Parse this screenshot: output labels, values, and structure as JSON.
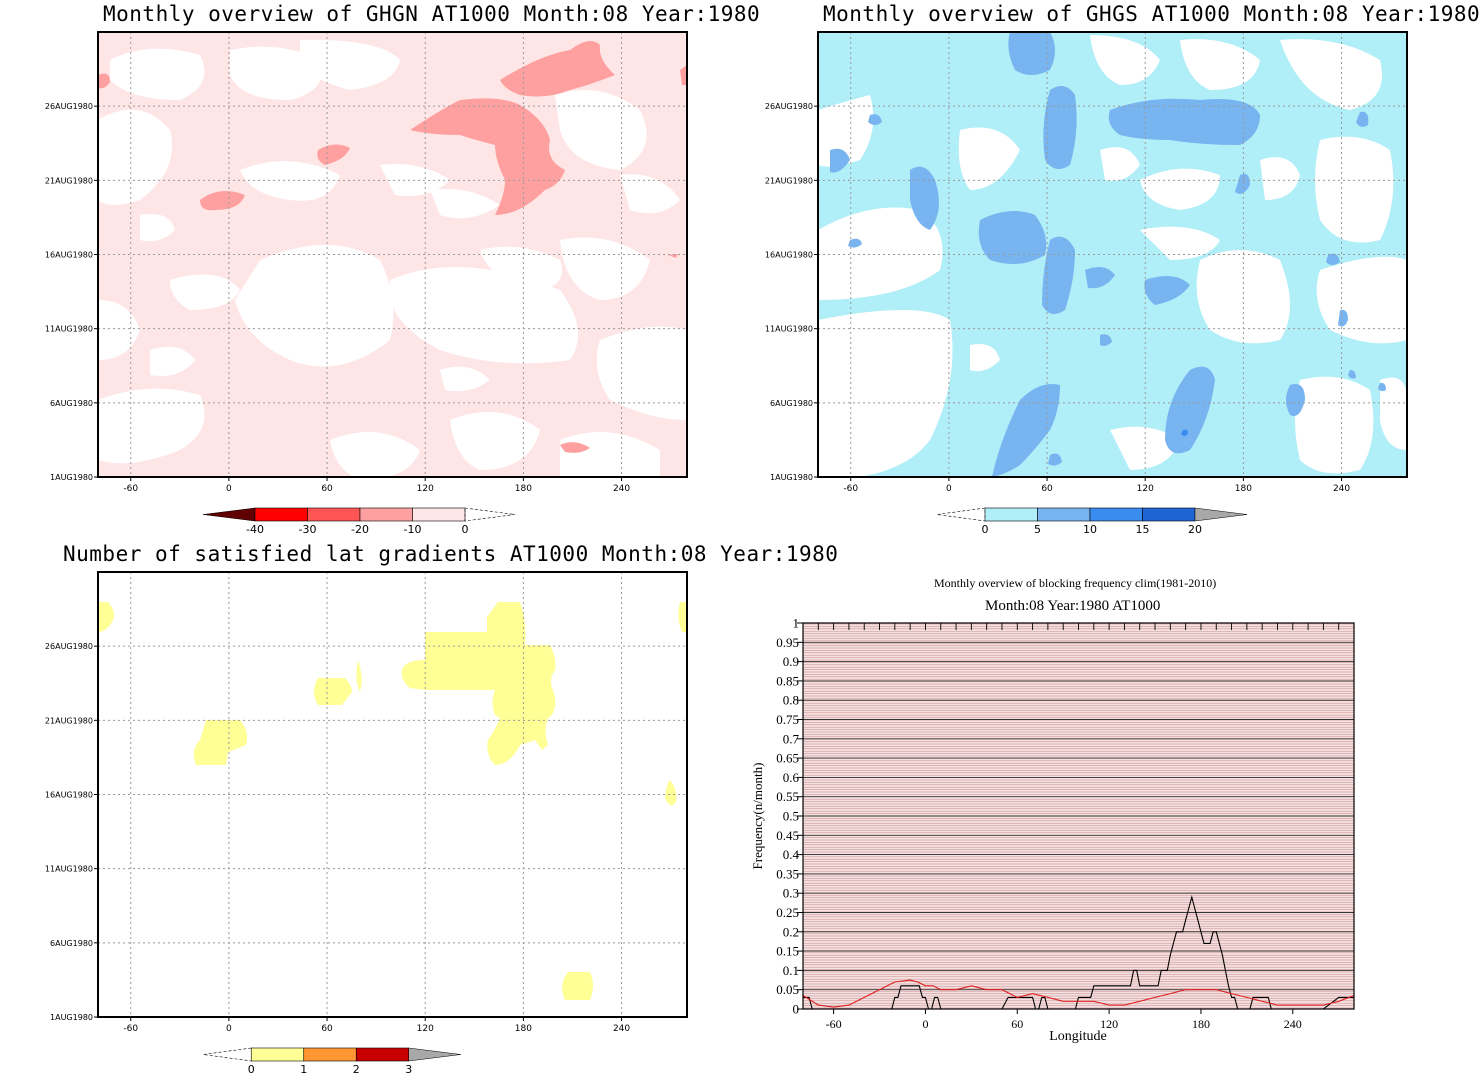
{
  "panels": [
    {
      "id": "ghgn",
      "title": "Monthly overview of GHGN AT1000 Month:08 Year:1980",
      "x_ticks": [
        "-60",
        "0",
        "60",
        "120",
        "180",
        "240"
      ],
      "x_tick_values": [
        -60,
        0,
        60,
        120,
        180,
        240
      ],
      "y_ticks": [
        "1AUG1980",
        "6AUG1980",
        "11AUG1980",
        "16AUG1980",
        "21AUG1980",
        "26AUG1980"
      ],
      "y_tick_values": [
        1,
        6,
        11,
        16,
        21,
        26
      ],
      "xlim": [
        -80,
        280
      ],
      "ylim": [
        1,
        31
      ],
      "colorbar": {
        "labels": [
          "-40",
          "-30",
          "-20",
          "-10",
          "0"
        ],
        "colors": [
          "#ff0000",
          "#ff5555",
          "#ffa0a0",
          "#ffe6e6"
        ],
        "low_end_color": "#600000",
        "high_end_open": true
      }
    },
    {
      "id": "ghgs",
      "title": "Monthly overview of GHGS AT1000 Month:08 Year:1980",
      "x_ticks": [
        "-60",
        "0",
        "60",
        "120",
        "180",
        "240"
      ],
      "x_tick_values": [
        -60,
        0,
        60,
        120,
        180,
        240
      ],
      "y_ticks": [
        "1AUG1980",
        "6AUG1980",
        "11AUG1980",
        "16AUG1980",
        "21AUG1980",
        "26AUG1980"
      ],
      "y_tick_values": [
        1,
        6,
        11,
        16,
        21,
        26
      ],
      "xlim": [
        -80,
        280
      ],
      "ylim": [
        1,
        31
      ],
      "colorbar": {
        "labels": [
          "0",
          "5",
          "10",
          "15",
          "20"
        ],
        "colors": [
          "#b0eef8",
          "#78b4f0",
          "#3a8cf0",
          "#1e64d2"
        ],
        "high_end_color": "#a8a8a8",
        "low_end_open": true
      }
    },
    {
      "id": "gradients",
      "title": "Number of satisfied lat gradients AT1000 Month:08 Year:1980",
      "x_ticks": [
        "-60",
        "0",
        "60",
        "120",
        "180",
        "240"
      ],
      "x_tick_values": [
        -60,
        0,
        60,
        120,
        180,
        240
      ],
      "y_ticks": [
        "1AUG1980",
        "6AUG1980",
        "11AUG1980",
        "16AUG1980",
        "21AUG1980",
        "26AUG1980"
      ],
      "y_tick_values": [
        1,
        6,
        11,
        16,
        21,
        26
      ],
      "xlim": [
        -80,
        280
      ],
      "ylim": [
        1,
        31
      ],
      "colorbar": {
        "labels": [
          "0",
          "1",
          "2",
          "3"
        ],
        "colors": [
          "#ffff96",
          "#ff9632",
          "#c80000"
        ],
        "high_end_color": "#a8a8a8",
        "low_end_open": true
      }
    }
  ],
  "blocking": {
    "title": "Monthly overview of blocking frequency clim(1981-2010)",
    "subtitle": "Month:08 Year:1980  AT1000",
    "xlabel": "Longitude",
    "ylabel": "Frequency(n/month)"
  },
  "chart_data": {
    "type": "line",
    "title": "Monthly overview of blocking frequency clim(1981-2010)",
    "subtitle": "Month:08 Year:1980  AT1000",
    "xlabel": "Longitude",
    "ylabel": "Frequency(n/month)",
    "xlim": [
      -80,
      280
    ],
    "ylim": [
      0,
      1
    ],
    "x_ticks": [
      -60,
      0,
      60,
      120,
      180,
      240
    ],
    "x_tick_labels": [
      "-60",
      "0",
      "60",
      "120",
      "180",
      "240"
    ],
    "y_ticks": [
      0,
      0.05,
      0.1,
      0.15,
      0.2,
      0.25,
      0.3,
      0.35,
      0.4,
      0.45,
      0.5,
      0.55,
      0.6,
      0.65,
      0.7,
      0.75,
      0.8,
      0.85,
      0.9,
      0.95,
      1
    ],
    "y_tick_labels": [
      "0",
      "0.05",
      "0.1",
      "0.15",
      "0.2",
      "0.25",
      "0.3",
      "0.35",
      "0.4",
      "0.45",
      "0.5",
      "0.55",
      "0.6",
      "0.65",
      "0.7",
      "0.75",
      "0.8",
      "0.85",
      "0.9",
      "0.95",
      "1"
    ],
    "grid": true,
    "series": [
      {
        "color": "#000000",
        "x": [
          -80,
          -78,
          -76,
          -74,
          -70,
          -66,
          -60,
          -56,
          -50,
          -40,
          -30,
          -24,
          -22,
          -20,
          -18,
          -16,
          -14,
          -12,
          -10,
          -8,
          -6,
          -4,
          -2,
          0,
          2,
          4,
          6,
          8,
          10,
          20,
          30,
          40,
          50,
          54,
          56,
          58,
          60,
          70,
          72,
          74,
          76,
          78,
          80,
          82,
          84,
          86,
          88,
          90,
          92,
          94,
          96,
          98,
          100,
          102,
          104,
          106,
          108,
          110,
          112,
          114,
          116,
          118,
          120,
          122,
          124,
          126,
          128,
          130,
          132,
          134,
          136,
          138,
          140,
          142,
          144,
          146,
          148,
          150,
          152,
          154,
          156,
          158,
          160,
          162,
          164,
          166,
          168,
          170,
          172,
          174,
          176,
          178,
          180,
          182,
          184,
          186,
          188,
          190,
          192,
          194,
          196,
          198,
          200,
          202,
          204,
          206,
          208,
          210,
          212,
          214,
          216,
          218,
          220,
          222,
          224,
          226,
          228,
          230,
          232,
          234,
          240,
          250,
          260,
          270,
          280
        ],
        "y": [
          0.03,
          0.03,
          0.03,
          0,
          0,
          0,
          0,
          0,
          0,
          0,
          0,
          0,
          0,
          0.03,
          0.03,
          0.06,
          0.06,
          0.06,
          0.06,
          0.06,
          0.06,
          0.06,
          0.03,
          0.03,
          0,
          0,
          0.03,
          0.03,
          0,
          0,
          0,
          0,
          0,
          0.03,
          0.03,
          0.03,
          0.03,
          0.03,
          0,
          0,
          0.03,
          0.03,
          0,
          0,
          0,
          0,
          0,
          0,
          0,
          0,
          0,
          0,
          0.03,
          0.03,
          0.03,
          0.03,
          0.03,
          0.06,
          0.06,
          0.06,
          0.06,
          0.06,
          0.06,
          0.06,
          0.06,
          0.06,
          0.06,
          0.06,
          0.06,
          0.06,
          0.1,
          0.1,
          0.06,
          0.06,
          0.06,
          0.06,
          0.06,
          0.06,
          0.06,
          0.1,
          0.1,
          0.1,
          0.14,
          0.17,
          0.2,
          0.2,
          0.2,
          0.23,
          0.26,
          0.29,
          0.26,
          0.23,
          0.2,
          0.17,
          0.17,
          0.17,
          0.2,
          0.2,
          0.17,
          0.14,
          0.1,
          0.06,
          0.03,
          0.03,
          0,
          0,
          0,
          0,
          0,
          0.03,
          0.03,
          0.03,
          0.03,
          0.03,
          0.03,
          0,
          0,
          0,
          0,
          0,
          0,
          0,
          0,
          0.03,
          0.03
        ]
      },
      {
        "color": "#e02020",
        "x": [
          -80,
          -70,
          -60,
          -50,
          -40,
          -30,
          -20,
          -10,
          -5,
          0,
          5,
          10,
          20,
          30,
          40,
          50,
          60,
          70,
          80,
          90,
          100,
          110,
          120,
          130,
          140,
          150,
          160,
          170,
          180,
          190,
          200,
          210,
          220,
          230,
          240,
          250,
          260,
          270,
          280
        ],
        "y": [
          0.035,
          0.01,
          0.005,
          0.01,
          0.03,
          0.05,
          0.07,
          0.075,
          0.07,
          0.06,
          0.06,
          0.05,
          0.05,
          0.06,
          0.05,
          0.05,
          0.03,
          0.04,
          0.03,
          0.02,
          0.02,
          0.02,
          0.01,
          0.01,
          0.02,
          0.03,
          0.04,
          0.05,
          0.05,
          0.05,
          0.04,
          0.03,
          0.02,
          0.01,
          0.01,
          0.01,
          0.01,
          0.02,
          0.035
        ]
      }
    ]
  }
}
